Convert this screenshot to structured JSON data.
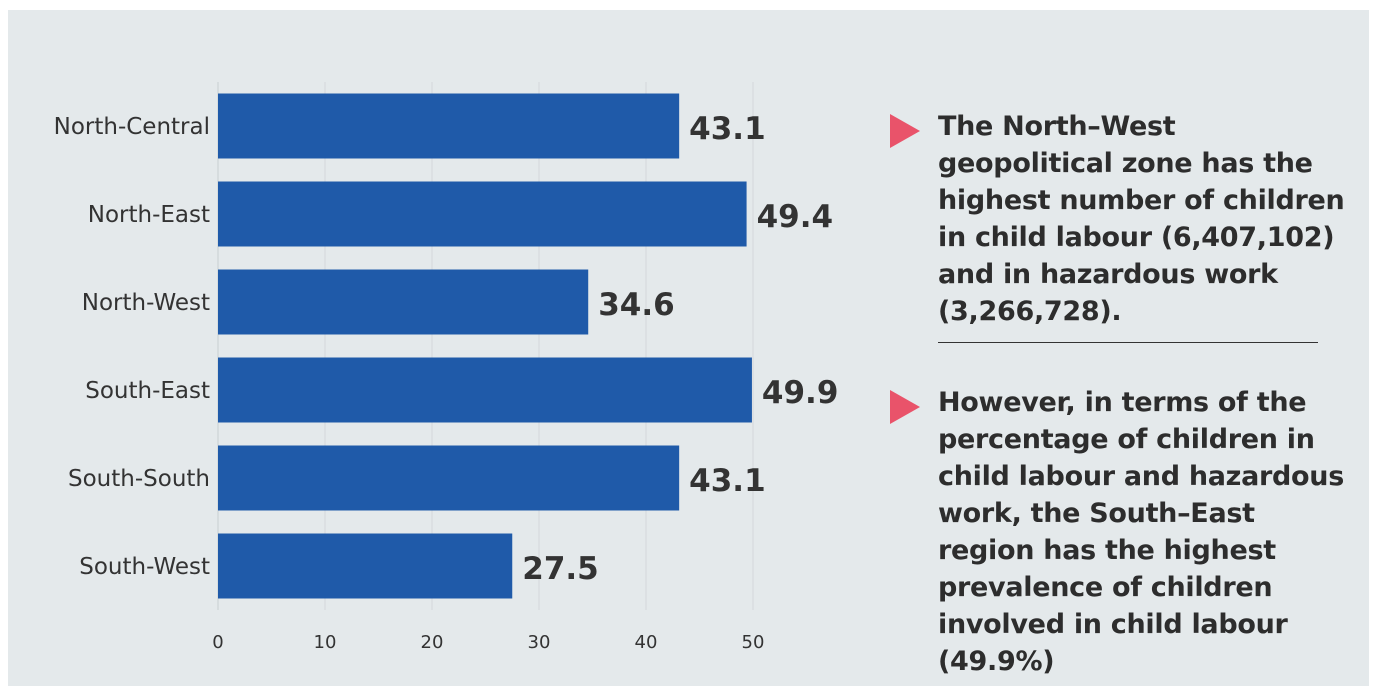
{
  "chart_data": {
    "type": "bar",
    "orientation": "horizontal",
    "categories": [
      "North-Central",
      "North-East",
      "North-West",
      "South-East",
      "South-South",
      "South-West"
    ],
    "values": [
      43.1,
      49.4,
      34.6,
      49.9,
      43.1,
      27.5
    ],
    "value_labels": [
      "43.1",
      "49.4",
      "34.6",
      "49.9",
      "43.1",
      "27.5"
    ],
    "xlim": [
      0,
      50
    ],
    "x_ticks": [
      0,
      10,
      20,
      30,
      40,
      50
    ],
    "x_tick_labels": [
      "0",
      "10",
      "20",
      "30",
      "40",
      "50"
    ],
    "grid": "vertical",
    "bar_color": "#1f5aa9"
  },
  "notes": [
    {
      "text": "The North–West geopolitical zone has the highest number of children in child labour (6,407,102) and in hazardous work (3,266,728)."
    },
    {
      "text": "However, in terms of the percentage of children in child labour and hazardous work, the South–East region has the highest prevalence of children involved in child labour (49.9%)"
    }
  ],
  "colors": {
    "marker": "#e9536a",
    "background": "#e4e9eb",
    "bar": "#1f5aa9"
  }
}
